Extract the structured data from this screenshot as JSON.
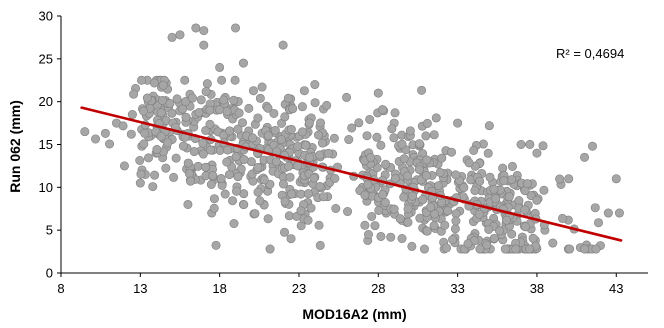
{
  "chart_data": {
    "type": "scatter",
    "xlabel": "MOD16A2 (mm)",
    "ylabel": "Run 062 (mm)",
    "xlim": [
      8,
      45
    ],
    "ylim": [
      0,
      30
    ],
    "xticks": [
      "8",
      "13",
      "18",
      "23",
      "28",
      "33",
      "38",
      "43"
    ],
    "yticks": [
      "0",
      "5",
      "10",
      "15",
      "20",
      "25",
      "30"
    ],
    "grid": false,
    "annotation": "R² = 0,4694",
    "colors": {
      "points": "#a6a6a6",
      "point_stroke": "#7f7f7f",
      "trendline": "#c00000",
      "axis": "#000000"
    },
    "trendline": {
      "x": [
        9.3,
        43.3
      ],
      "y": [
        19.3,
        3.8
      ]
    },
    "point_count": 900,
    "points_sample": [
      [
        9.5,
        16.5
      ],
      [
        10.8,
        16.3
      ],
      [
        11.5,
        17.5
      ],
      [
        12.0,
        12.5
      ],
      [
        12.5,
        18.5
      ],
      [
        13.0,
        10.5
      ],
      [
        13.5,
        20.0
      ],
      [
        14.0,
        14.0
      ],
      [
        14.5,
        19.5
      ],
      [
        15.0,
        27.5
      ],
      [
        15.5,
        27.8
      ],
      [
        15.8,
        22.5
      ],
      [
        16.0,
        8.0
      ],
      [
        16.5,
        28.6
      ],
      [
        17.0,
        28.3
      ],
      [
        17.0,
        26.6
      ],
      [
        17.5,
        7.0
      ],
      [
        18.0,
        24.0
      ],
      [
        18.5,
        18.5
      ],
      [
        19.0,
        28.6
      ],
      [
        19.0,
        20.0
      ],
      [
        19.5,
        24.5
      ],
      [
        19.5,
        8.0
      ],
      [
        20.0,
        13.0
      ],
      [
        21.0,
        17.0
      ],
      [
        22.0,
        26.6
      ],
      [
        22.5,
        19.5
      ],
      [
        22.5,
        4.0
      ],
      [
        23.0,
        14.0
      ],
      [
        24.0,
        22.0
      ],
      [
        25.0,
        12.0
      ],
      [
        26.0,
        20.5
      ],
      [
        27.0,
        10.0
      ],
      [
        28.0,
        21.0
      ],
      [
        28.5,
        7.0
      ],
      [
        29.0,
        17.5
      ],
      [
        30.0,
        12.0
      ],
      [
        31.0,
        16.0
      ],
      [
        32.0,
        8.0
      ],
      [
        33.0,
        17.5
      ],
      [
        34.0,
        6.0
      ],
      [
        35.0,
        17.2
      ],
      [
        36.0,
        8.0
      ],
      [
        37.0,
        15.0
      ],
      [
        38.0,
        14.0
      ],
      [
        38.5,
        5.0
      ],
      [
        39.0,
        3.5
      ],
      [
        40.0,
        11.0
      ],
      [
        41.0,
        13.5
      ],
      [
        41.5,
        14.8
      ],
      [
        42.0,
        3.2
      ],
      [
        42.5,
        7.0
      ],
      [
        43.0,
        11.0
      ],
      [
        43.2,
        7.0
      ]
    ]
  }
}
